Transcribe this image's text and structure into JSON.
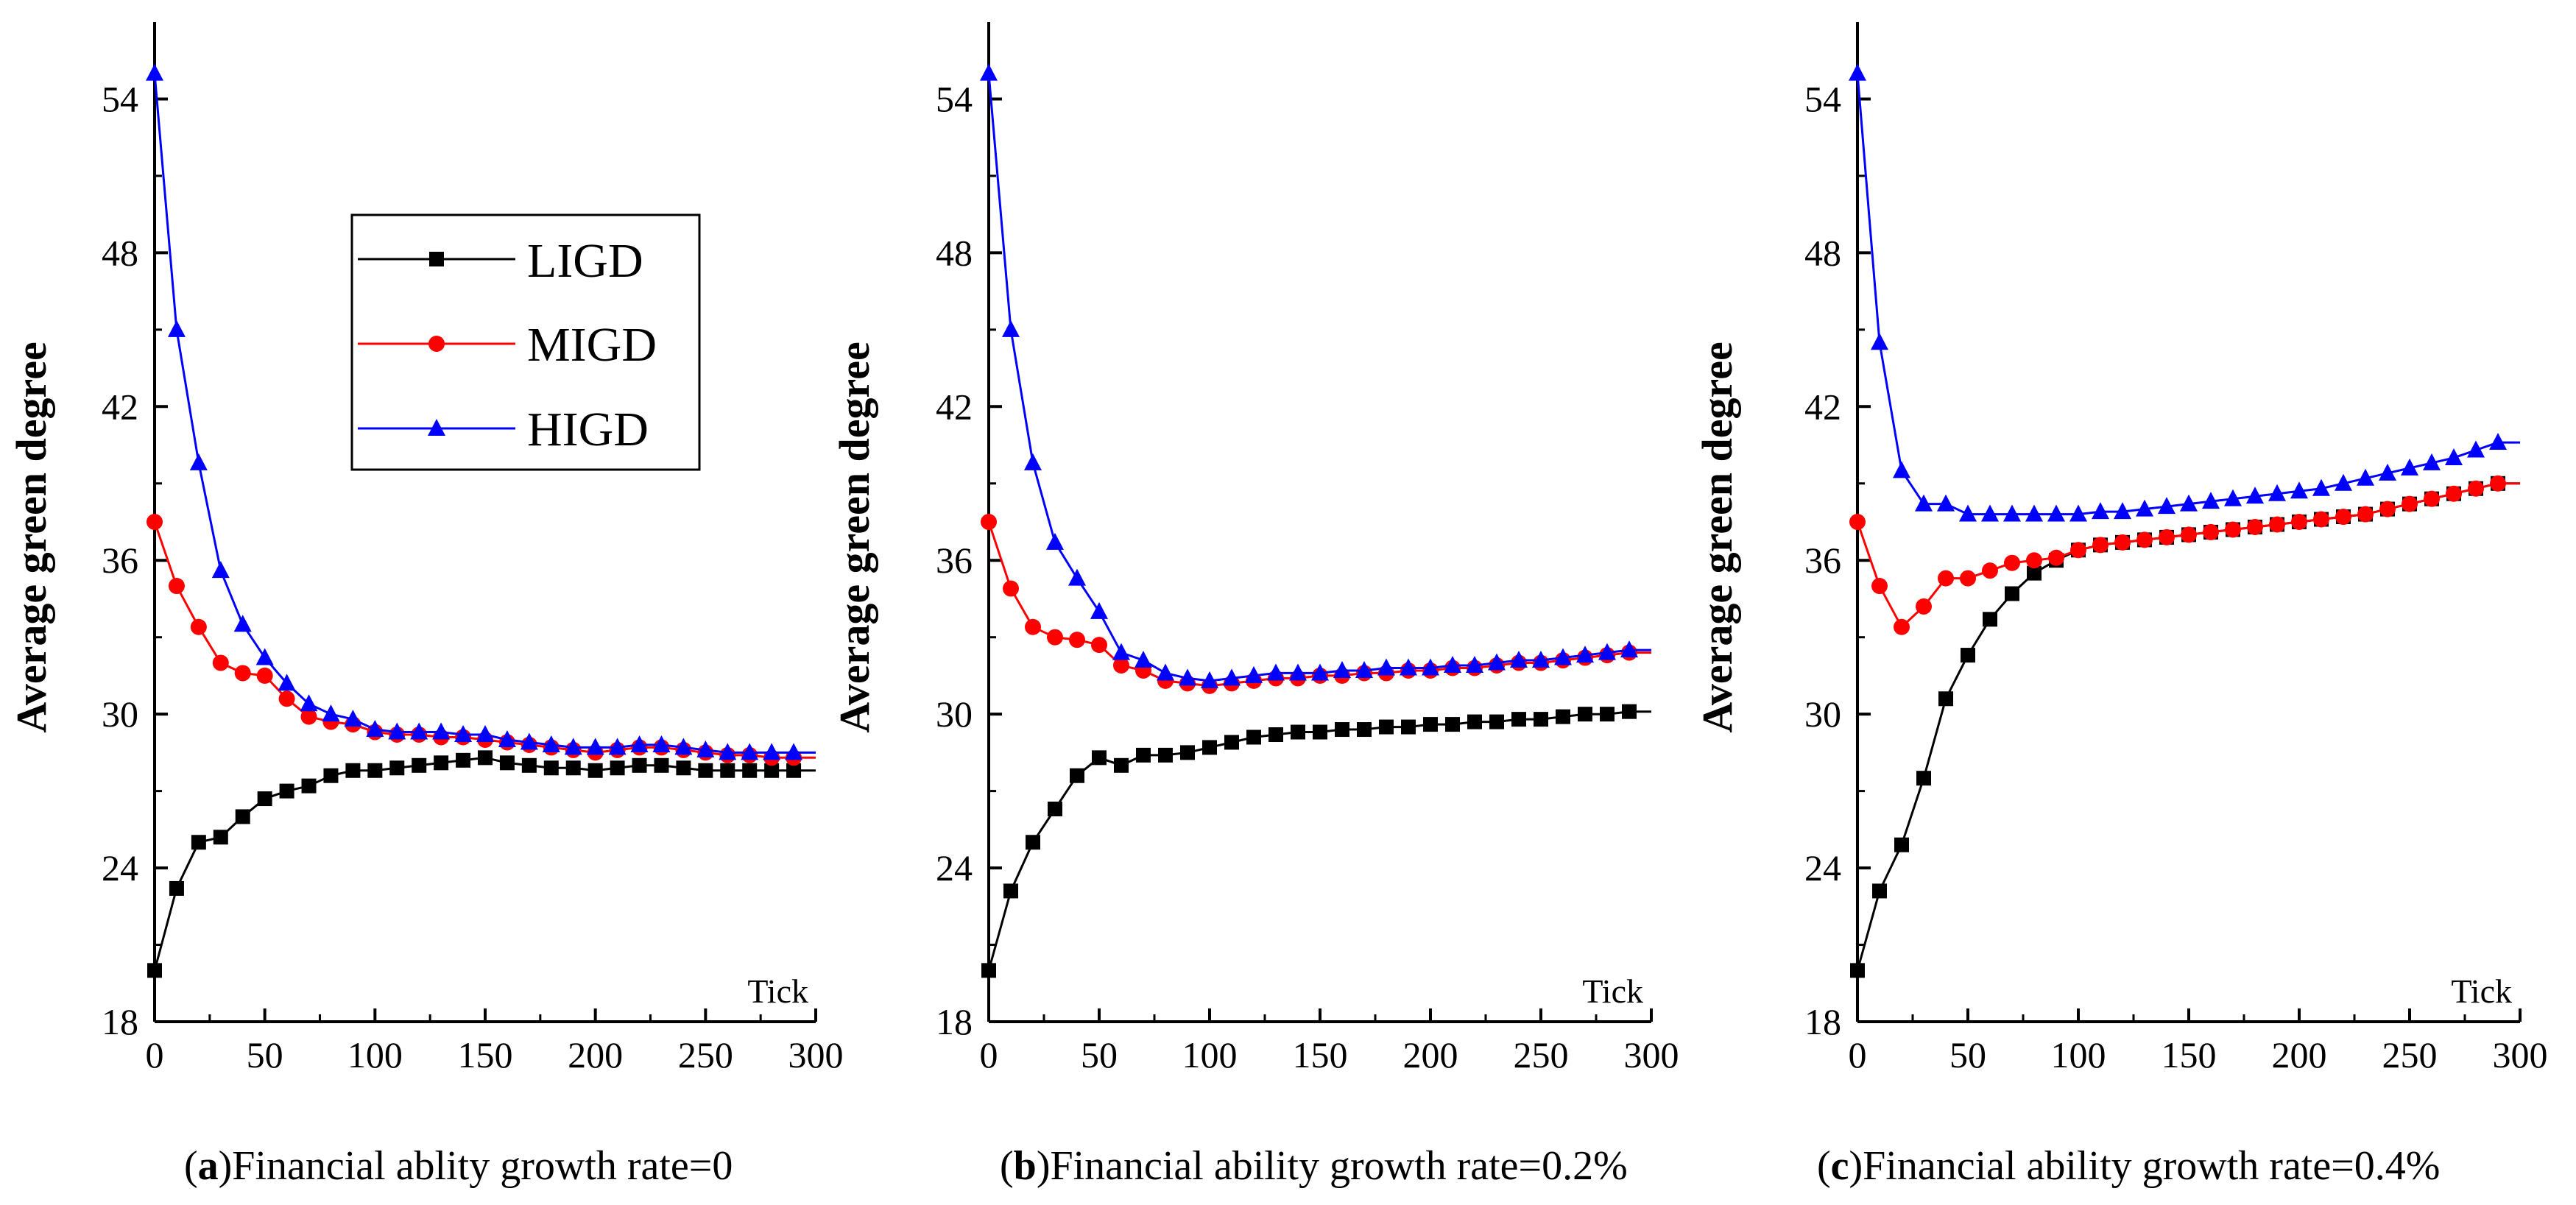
{
  "colors": {
    "LIGD": "#000000",
    "MIGD": "#ff0000",
    "HIGD": "#0000ff"
  },
  "legend": {
    "items": [
      {
        "label": "LIGD",
        "marker": "square",
        "color": "#000000"
      },
      {
        "label": "MIGD",
        "marker": "circle",
        "color": "#ff0000"
      },
      {
        "label": "HIGD",
        "marker": "triangle",
        "color": "#0000ff"
      }
    ]
  },
  "chart_data": [
    {
      "type": "line",
      "caption_letter": "a",
      "caption_text": ")Financial  ablity growth rate=0",
      "ylabel": "Average green degree",
      "xlabel": "Tick",
      "xlim": [
        0,
        300
      ],
      "ylim": [
        18,
        57
      ],
      "xticks": [
        0,
        50,
        100,
        150,
        200,
        250,
        300
      ],
      "yticks": [
        18,
        24,
        30,
        36,
        42,
        48,
        54
      ],
      "x": [
        0,
        10,
        20,
        30,
        40,
        50,
        60,
        70,
        80,
        90,
        100,
        110,
        120,
        130,
        140,
        150,
        160,
        170,
        180,
        190,
        200,
        210,
        220,
        230,
        240,
        250,
        260,
        270,
        280,
        290
      ],
      "series": [
        {
          "name": "LIGD",
          "values": [
            20.0,
            23.2,
            25.0,
            25.2,
            26.0,
            26.7,
            27.0,
            27.2,
            27.6,
            27.8,
            27.8,
            27.9,
            28.0,
            28.1,
            28.2,
            28.3,
            28.1,
            28.0,
            27.9,
            27.9,
            27.8,
            27.9,
            28.0,
            28.0,
            27.9,
            27.8,
            27.8,
            27.8,
            27.8,
            27.8
          ]
        },
        {
          "name": "MIGD",
          "values": [
            37.5,
            35.0,
            33.4,
            32.0,
            31.6,
            31.5,
            30.6,
            29.9,
            29.7,
            29.6,
            29.3,
            29.2,
            29.2,
            29.1,
            29.1,
            29.0,
            28.9,
            28.8,
            28.7,
            28.6,
            28.5,
            28.6,
            28.7,
            28.7,
            28.6,
            28.5,
            28.4,
            28.4,
            28.3,
            28.3
          ]
        },
        {
          "name": "HIGD",
          "values": [
            55.0,
            45.0,
            39.8,
            35.6,
            33.5,
            32.2,
            31.2,
            30.4,
            30.0,
            29.8,
            29.4,
            29.3,
            29.3,
            29.3,
            29.2,
            29.2,
            29.0,
            28.9,
            28.8,
            28.7,
            28.7,
            28.7,
            28.8,
            28.8,
            28.7,
            28.6,
            28.5,
            28.5,
            28.5,
            28.5
          ]
        }
      ]
    },
    {
      "type": "line",
      "caption_letter": "b",
      "caption_text": ")Financial  ability growth rate=0.2%",
      "ylabel": "Average green degree",
      "xlabel": "Tick",
      "xlim": [
        0,
        300
      ],
      "ylim": [
        18,
        57
      ],
      "xticks": [
        0,
        50,
        100,
        150,
        200,
        250,
        300
      ],
      "yticks": [
        18,
        24,
        30,
        36,
        42,
        48,
        54
      ],
      "x": [
        0,
        10,
        20,
        30,
        40,
        50,
        60,
        70,
        80,
        90,
        100,
        110,
        120,
        130,
        140,
        150,
        160,
        170,
        180,
        190,
        200,
        210,
        220,
        230,
        240,
        250,
        260,
        270,
        280,
        290
      ],
      "series": [
        {
          "name": "LIGD",
          "values": [
            20.0,
            23.1,
            25.0,
            26.3,
            27.6,
            28.3,
            28.0,
            28.4,
            28.4,
            28.5,
            28.7,
            28.9,
            29.1,
            29.2,
            29.3,
            29.3,
            29.4,
            29.4,
            29.5,
            29.5,
            29.6,
            29.6,
            29.7,
            29.7,
            29.8,
            29.8,
            29.9,
            30.0,
            30.0,
            30.1
          ]
        },
        {
          "name": "MIGD",
          "values": [
            37.5,
            34.9,
            33.4,
            33.0,
            32.9,
            32.7,
            31.9,
            31.7,
            31.3,
            31.2,
            31.1,
            31.2,
            31.3,
            31.4,
            31.4,
            31.5,
            31.5,
            31.6,
            31.6,
            31.7,
            31.7,
            31.8,
            31.8,
            31.9,
            32.0,
            32.0,
            32.1,
            32.2,
            32.3,
            32.4
          ]
        },
        {
          "name": "HIGD",
          "values": [
            55.0,
            45.0,
            39.8,
            36.7,
            35.3,
            34.0,
            32.4,
            32.1,
            31.6,
            31.4,
            31.3,
            31.4,
            31.5,
            31.6,
            31.6,
            31.6,
            31.7,
            31.7,
            31.8,
            31.8,
            31.8,
            31.9,
            31.9,
            32.0,
            32.1,
            32.1,
            32.2,
            32.3,
            32.4,
            32.5
          ]
        }
      ]
    },
    {
      "type": "line",
      "caption_letter": "c",
      "caption_text": ")Financial ability growth rate=0.4%",
      "ylabel": "Average green degree",
      "xlabel": "Tick",
      "xlim": [
        0,
        300
      ],
      "ylim": [
        18,
        57
      ],
      "xticks": [
        0,
        50,
        100,
        150,
        200,
        250,
        300
      ],
      "yticks": [
        18,
        24,
        30,
        36,
        42,
        48,
        54
      ],
      "x": [
        0,
        10,
        20,
        30,
        40,
        50,
        60,
        70,
        80,
        90,
        100,
        110,
        120,
        130,
        140,
        150,
        160,
        170,
        180,
        190,
        200,
        210,
        220,
        230,
        240,
        250,
        260,
        270,
        280,
        290
      ],
      "series": [
        {
          "name": "LIGD",
          "values": [
            20.0,
            23.1,
            24.9,
            27.5,
            30.6,
            32.3,
            33.7,
            34.7,
            35.5,
            36.0,
            36.4,
            36.6,
            36.7,
            36.8,
            36.9,
            37.0,
            37.1,
            37.2,
            37.3,
            37.4,
            37.5,
            37.6,
            37.7,
            37.8,
            38.0,
            38.2,
            38.4,
            38.6,
            38.8,
            39.0
          ]
        },
        {
          "name": "MIGD",
          "values": [
            37.5,
            35.0,
            33.4,
            34.2,
            35.3,
            35.3,
            35.6,
            35.9,
            36.0,
            36.1,
            36.4,
            36.6,
            36.7,
            36.8,
            36.9,
            37.0,
            37.1,
            37.2,
            37.3,
            37.4,
            37.5,
            37.6,
            37.7,
            37.8,
            38.0,
            38.2,
            38.4,
            38.6,
            38.8,
            39.0
          ]
        },
        {
          "name": "HIGD",
          "values": [
            55.0,
            44.5,
            39.5,
            38.2,
            38.2,
            37.8,
            37.8,
            37.8,
            37.8,
            37.8,
            37.8,
            37.9,
            37.9,
            38.0,
            38.1,
            38.2,
            38.3,
            38.4,
            38.5,
            38.6,
            38.7,
            38.8,
            39.0,
            39.2,
            39.4,
            39.6,
            39.8,
            40.0,
            40.3,
            40.6
          ]
        }
      ]
    }
  ]
}
